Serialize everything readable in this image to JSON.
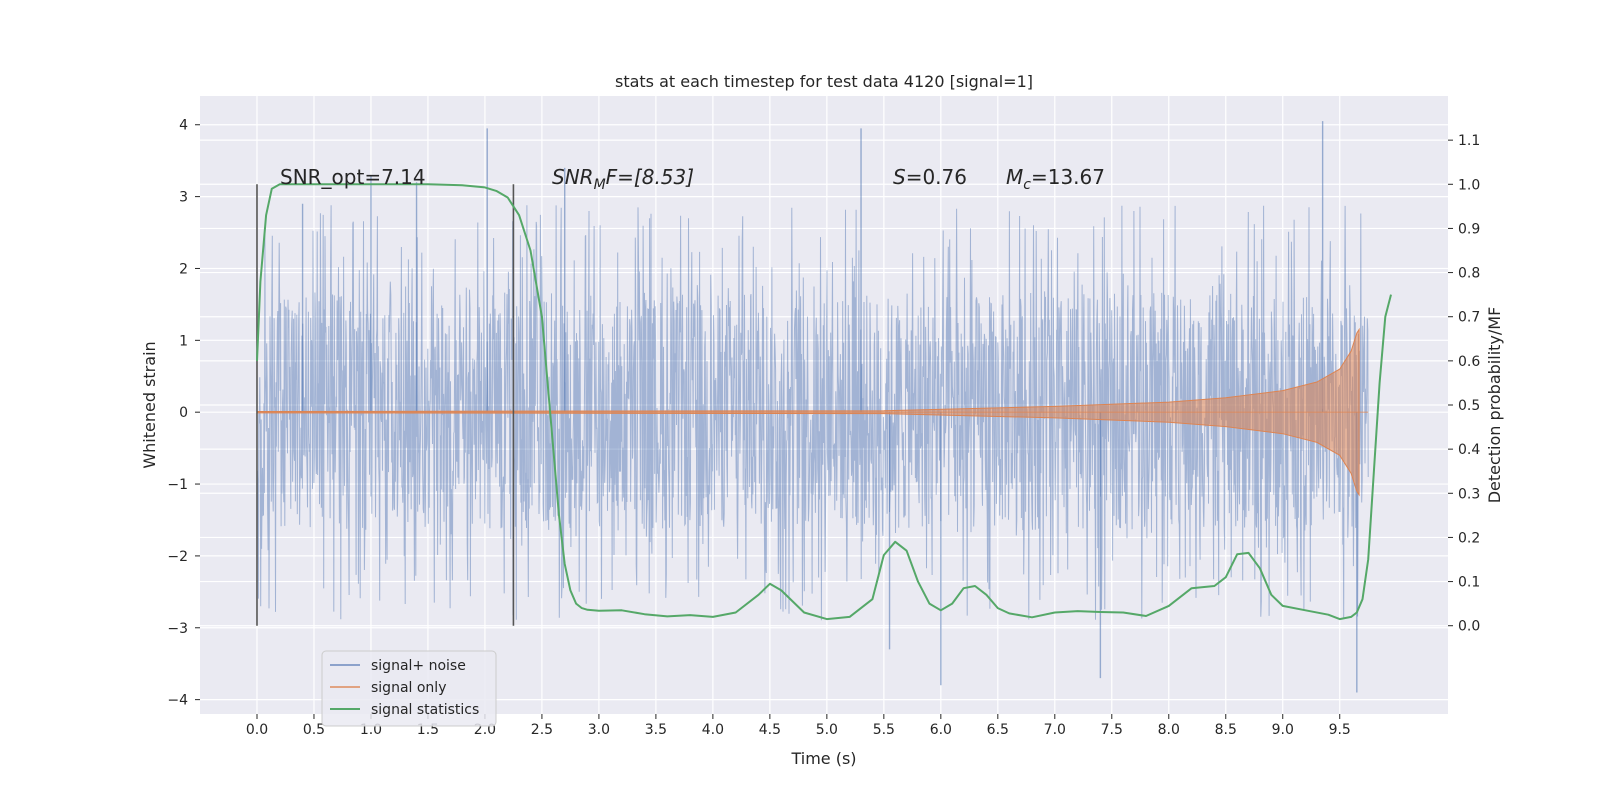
{
  "chart_data": {
    "type": "line",
    "title": "stats at each timestep for test data 4120 [signal=1]",
    "xlabel": "Time (s)",
    "ylabel_left": "Whitened strain",
    "ylabel_right": "Detection probability/MF",
    "xlim": [
      -0.5,
      10.45
    ],
    "ylim_left": [
      -4.2,
      4.4
    ],
    "ylim_right": [
      -0.2,
      1.2
    ],
    "x_ticks": [
      "0.0",
      "0.5",
      "1.0",
      "1.5",
      "2.0",
      "2.5",
      "3.0",
      "3.5",
      "4.0",
      "4.5",
      "5.0",
      "5.5",
      "6.0",
      "6.5",
      "7.0",
      "7.5",
      "8.0",
      "8.5",
      "9.0",
      "9.5"
    ],
    "y_ticks_left": [
      "−4",
      "−3",
      "−2",
      "−1",
      "0",
      "1",
      "2",
      "3",
      "4"
    ],
    "y_ticks_right": [
      "0.0",
      "0.1",
      "0.2",
      "0.3",
      "0.4",
      "0.5",
      "0.6",
      "0.7",
      "0.8",
      "0.9",
      "1.0",
      "1.1"
    ],
    "grid": true,
    "legend_position": "lower-left",
    "colors": {
      "plot_bg": "#eaeaf2",
      "grid": "#ffffff",
      "noise": "#4c72b0",
      "signal": "#dd8452",
      "stat": "#55a868",
      "marker": "#555555"
    },
    "annotations": {
      "snr_opt": "SNR_opt=7.14",
      "snr_mf_var": "SNR",
      "snr_mf_sub": "M",
      "snr_mf_tail": "F=[8.53]",
      "s_var": "S",
      "s_val": "=0.76",
      "mc_var": "M",
      "mc_sub": "c",
      "mc_val": "=13.67"
    },
    "markers_x": [
      0.0,
      2.25
    ],
    "series": [
      {
        "name": "signal+ noise",
        "axis": "left",
        "envelope_x": [
          0.0,
          0.5,
          1.0,
          1.5,
          2.0,
          2.5,
          3.0,
          3.5,
          4.0,
          4.5,
          5.0,
          5.5,
          6.0,
          6.5,
          7.0,
          7.5,
          8.0,
          8.5,
          9.0,
          9.5,
          9.75
        ],
        "typical_amplitude": 1.3,
        "peak_values": [
          {
            "x": 0.4,
            "y": 2.9
          },
          {
            "x": 1.0,
            "y": 3.3
          },
          {
            "x": 1.4,
            "y": 3.2
          },
          {
            "x": 2.02,
            "y": 3.95
          },
          {
            "x": 2.7,
            "y": 3.4
          },
          {
            "x": 5.3,
            "y": 3.95
          },
          {
            "x": 5.55,
            "y": -3.3
          },
          {
            "x": 6.0,
            "y": -3.8
          },
          {
            "x": 7.4,
            "y": -3.7
          },
          {
            "x": 9.35,
            "y": 4.05
          },
          {
            "x": 9.65,
            "y": -3.9
          }
        ]
      },
      {
        "name": "signal only",
        "axis": "left",
        "x": [
          0.0,
          5.5,
          7.0,
          8.0,
          8.5,
          9.0,
          9.3,
          9.5,
          9.6,
          9.65,
          9.67
        ],
        "amplitude": [
          0.01,
          0.02,
          0.08,
          0.14,
          0.2,
          0.3,
          0.42,
          0.6,
          0.85,
          1.1,
          1.15
        ]
      },
      {
        "name": "signal statistics",
        "axis": "right",
        "x": [
          0.0,
          0.03,
          0.08,
          0.13,
          0.2,
          0.3,
          0.5,
          1.0,
          1.5,
          1.8,
          2.0,
          2.1,
          2.2,
          2.3,
          2.4,
          2.5,
          2.55,
          2.6,
          2.65,
          2.7,
          2.75,
          2.8,
          2.85,
          2.9,
          3.0,
          3.2,
          3.4,
          3.6,
          3.8,
          4.0,
          4.2,
          4.4,
          4.5,
          4.6,
          4.8,
          5.0,
          5.2,
          5.4,
          5.5,
          5.6,
          5.7,
          5.8,
          5.9,
          6.0,
          6.1,
          6.2,
          6.3,
          6.4,
          6.5,
          6.6,
          6.8,
          7.0,
          7.2,
          7.4,
          7.6,
          7.8,
          8.0,
          8.2,
          8.4,
          8.5,
          8.6,
          8.7,
          8.8,
          8.9,
          9.0,
          9.2,
          9.4,
          9.5,
          9.6,
          9.65,
          9.7,
          9.75,
          9.8,
          9.85,
          9.9,
          9.95
        ],
        "y": [
          0.6,
          0.78,
          0.93,
          0.99,
          1.0,
          1.0,
          1.0,
          1.0,
          1.0,
          0.998,
          0.993,
          0.985,
          0.97,
          0.93,
          0.85,
          0.7,
          0.55,
          0.4,
          0.25,
          0.14,
          0.08,
          0.05,
          0.04,
          0.036,
          0.034,
          0.035,
          0.026,
          0.021,
          0.024,
          0.02,
          0.03,
          0.07,
          0.095,
          0.08,
          0.03,
          0.015,
          0.02,
          0.06,
          0.16,
          0.19,
          0.17,
          0.1,
          0.05,
          0.035,
          0.05,
          0.085,
          0.09,
          0.07,
          0.04,
          0.028,
          0.019,
          0.03,
          0.033,
          0.031,
          0.03,
          0.022,
          0.045,
          0.085,
          0.09,
          0.11,
          0.162,
          0.165,
          0.13,
          0.07,
          0.045,
          0.035,
          0.025,
          0.015,
          0.02,
          0.03,
          0.06,
          0.15,
          0.35,
          0.55,
          0.7,
          0.75
        ]
      }
    ]
  }
}
